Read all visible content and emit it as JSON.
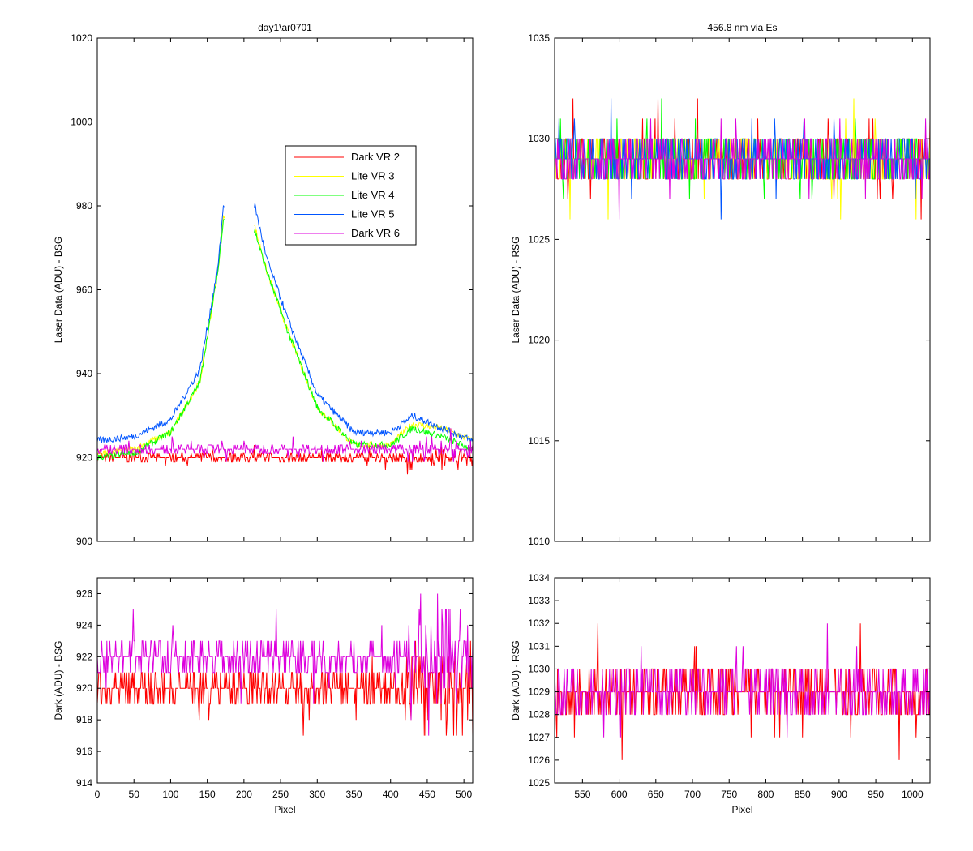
{
  "chart_data": [
    {
      "type": "line",
      "title": "day1\\ar0701",
      "xlabel": "",
      "ylabel": "Laser Data (ADU) - BSG",
      "xlim": [
        0,
        512
      ],
      "ylim": [
        900,
        1020
      ],
      "xticks": [
        0,
        50,
        100,
        150,
        200,
        250,
        300,
        350,
        400,
        450,
        500
      ],
      "yticks": [
        900,
        920,
        940,
        960,
        980,
        1000,
        1020
      ],
      "show_x_tick_labels": false,
      "legend_position": "upper-right-inside",
      "series": [
        {
          "name": "Dark VR 2",
          "color": "#ff0000",
          "profile": "flat",
          "base": 920,
          "x": [
            0,
            512
          ],
          "y": [
            920,
            921
          ]
        },
        {
          "name": "Lite VR 3",
          "color": "#ffff00",
          "profile": "peak",
          "x": [
            0,
            50,
            100,
            140,
            165,
            172,
            215,
            230,
            260,
            300,
            350,
            400,
            430,
            470,
            512
          ],
          "y": [
            921,
            922,
            926,
            938,
            965,
            978,
            975,
            965,
            950,
            932,
            923,
            923,
            928,
            927,
            924
          ]
        },
        {
          "name": "Lite VR 4",
          "color": "#00ff00",
          "profile": "peak",
          "x": [
            0,
            50,
            100,
            140,
            165,
            172,
            215,
            230,
            260,
            300,
            350,
            400,
            430,
            470,
            512
          ],
          "y": [
            920,
            921,
            926,
            938,
            965,
            977,
            974,
            965,
            950,
            932,
            923,
            923,
            927,
            925,
            922
          ]
        },
        {
          "name": "Lite VR 5",
          "color": "#0055ff",
          "profile": "peak",
          "x": [
            0,
            50,
            100,
            140,
            165,
            172,
            215,
            230,
            260,
            300,
            350,
            400,
            430,
            470,
            512
          ],
          "y": [
            924,
            925,
            929,
            941,
            966,
            980,
            980,
            968,
            953,
            935,
            926,
            926,
            930,
            927,
            924
          ]
        },
        {
          "name": "Dark VR 6",
          "color": "#dd00dd",
          "profile": "flat",
          "base": 922,
          "x": [
            0,
            512
          ],
          "y": [
            921,
            922
          ]
        }
      ]
    },
    {
      "type": "line",
      "title": "456.8 nm via Es",
      "xlabel": "",
      "ylabel": "Laser Data (ADU) - RSG",
      "xlim": [
        512,
        1024
      ],
      "ylim": [
        1010,
        1035
      ],
      "xticks": [
        550,
        600,
        650,
        700,
        750,
        800,
        850,
        900,
        950,
        1000
      ],
      "yticks": [
        1010,
        1015,
        1020,
        1025,
        1030,
        1035
      ],
      "show_x_tick_labels": false,
      "series": [
        {
          "name": "Dark VR 2",
          "color": "#ff0000",
          "profile": "flat",
          "base": 1029,
          "x": [
            512,
            1024
          ],
          "y": [
            1029,
            1029
          ]
        },
        {
          "name": "Lite VR 3",
          "color": "#ffff00",
          "profile": "flat",
          "base": 1029,
          "x": [
            512,
            1024
          ],
          "y": [
            1029,
            1029
          ]
        },
        {
          "name": "Lite VR 4",
          "color": "#00ff00",
          "profile": "flat",
          "base": 1029,
          "x": [
            512,
            1024
          ],
          "y": [
            1029,
            1029
          ]
        },
        {
          "name": "Lite VR 5",
          "color": "#0055ff",
          "profile": "flat",
          "base": 1029,
          "x": [
            512,
            1024
          ],
          "y": [
            1029,
            1029
          ]
        },
        {
          "name": "Dark VR 6",
          "color": "#dd00dd",
          "profile": "flat",
          "base": 1029,
          "x": [
            512,
            1024
          ],
          "y": [
            1029,
            1029
          ]
        }
      ]
    },
    {
      "type": "line",
      "title": "",
      "xlabel": "Pixel",
      "ylabel": "Dark (ADU) - BSG",
      "xlim": [
        0,
        512
      ],
      "ylim": [
        914,
        927
      ],
      "xticks": [
        0,
        50,
        100,
        150,
        200,
        250,
        300,
        350,
        400,
        450,
        500
      ],
      "yticks": [
        914,
        916,
        918,
        920,
        922,
        924,
        926
      ],
      "show_x_tick_labels": true,
      "series": [
        {
          "name": "Dark VR 2",
          "color": "#ff0000",
          "profile": "flat",
          "base": 920,
          "x": [
            0,
            512
          ],
          "y": [
            920,
            921
          ]
        },
        {
          "name": "Dark VR 6",
          "color": "#dd00dd",
          "profile": "flat",
          "base": 922,
          "x": [
            0,
            512
          ],
          "y": [
            921,
            922
          ]
        }
      ]
    },
    {
      "type": "line",
      "title": "",
      "xlabel": "Pixel",
      "ylabel": "Dark (ADU) - RSG",
      "xlim": [
        512,
        1024
      ],
      "ylim": [
        1025,
        1034
      ],
      "xticks": [
        550,
        600,
        650,
        700,
        750,
        800,
        850,
        900,
        950,
        1000
      ],
      "yticks": [
        1025,
        1026,
        1027,
        1028,
        1029,
        1030,
        1031,
        1032,
        1033,
        1034
      ],
      "show_x_tick_labels": true,
      "series": [
        {
          "name": "Dark VR 2",
          "color": "#ff0000",
          "profile": "flat",
          "base": 1029,
          "x": [
            512,
            1024
          ],
          "y": [
            1029,
            1029
          ]
        },
        {
          "name": "Dark VR 6",
          "color": "#dd00dd",
          "profile": "flat",
          "base": 1029,
          "x": [
            512,
            1024
          ],
          "y": [
            1029,
            1029
          ]
        }
      ]
    }
  ]
}
